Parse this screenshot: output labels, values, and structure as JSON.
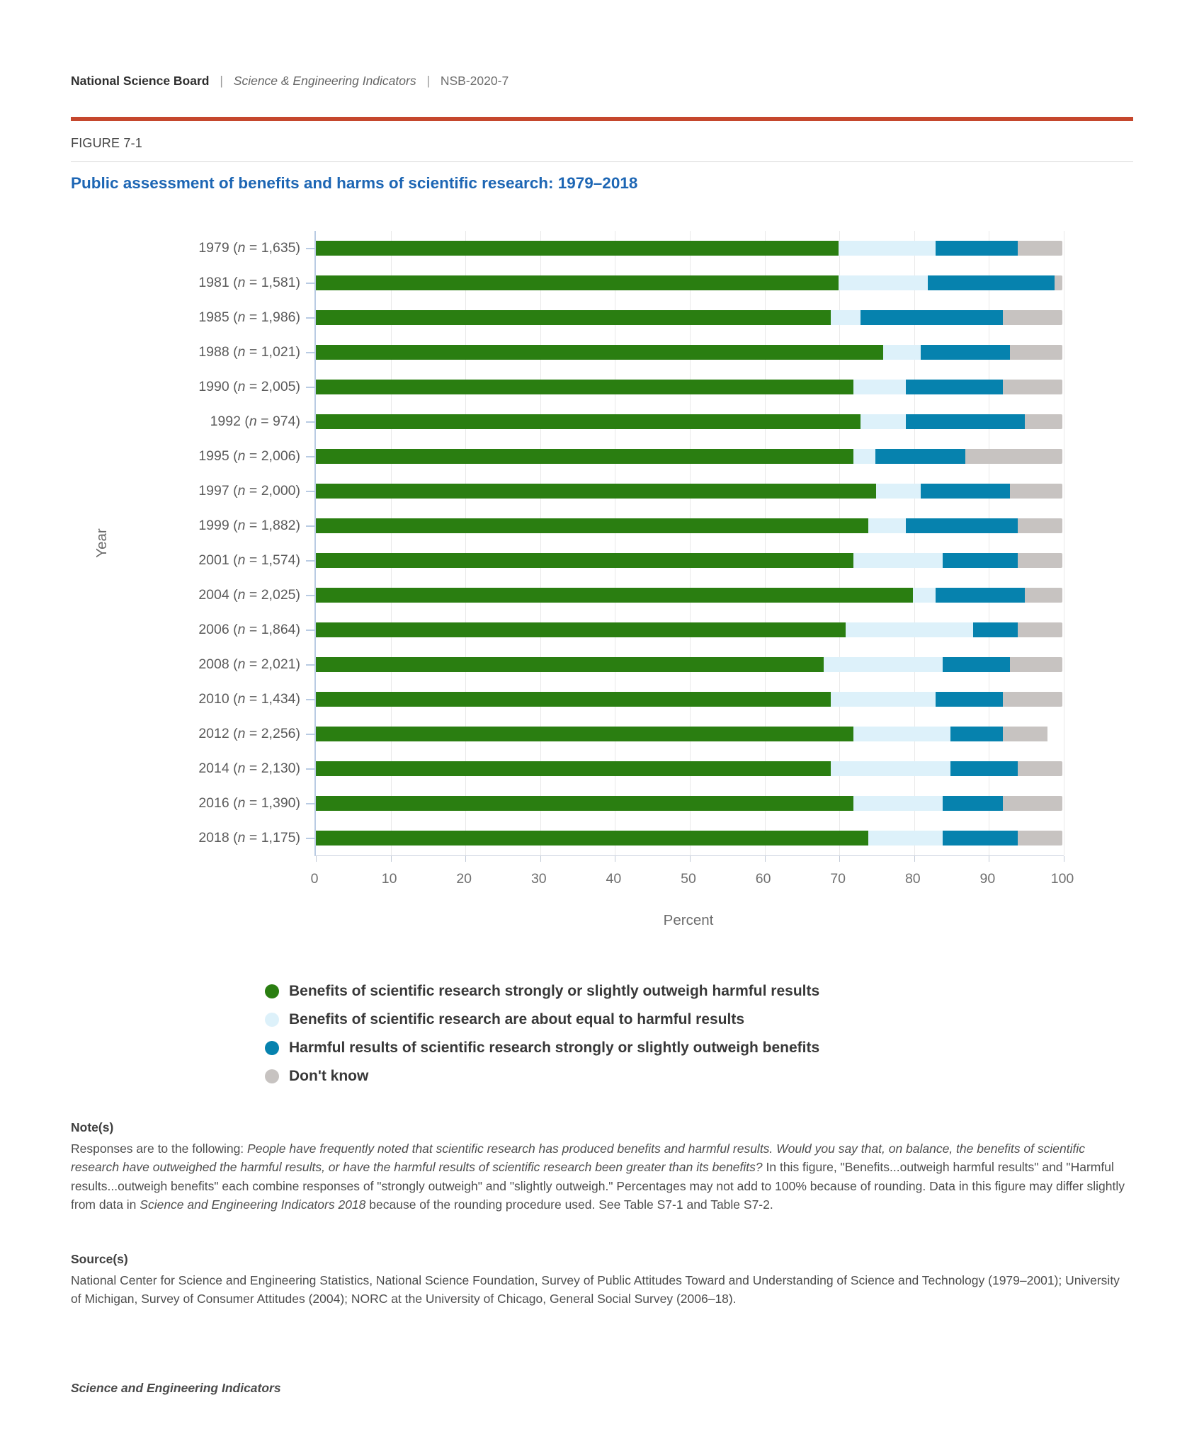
{
  "header": {
    "org": "National Science Board",
    "publication": "Science & Engineering Indicators",
    "report_id": "NSB-2020-7",
    "separator": "|"
  },
  "figure": {
    "label": "FIGURE 7-1",
    "title": "Public assessment of benefits and harms of scientific research: 1979–2018"
  },
  "chart_data": {
    "type": "bar",
    "orientation": "horizontal",
    "stacked": true,
    "title": "Public assessment of benefits and harms of scientific research: 1979–2018",
    "xlabel": "Percent",
    "ylabel": "Year",
    "xlim": [
      0,
      100
    ],
    "xticks": [
      0,
      10,
      20,
      30,
      40,
      50,
      60,
      70,
      80,
      90,
      100
    ],
    "grid": true,
    "legend_position": "bottom",
    "categories": [
      {
        "year": "1979",
        "n": "1,635"
      },
      {
        "year": "1981",
        "n": "1,581"
      },
      {
        "year": "1985",
        "n": "1,986"
      },
      {
        "year": "1988",
        "n": "1,021"
      },
      {
        "year": "1990",
        "n": "2,005"
      },
      {
        "year": "1992",
        "n": "974"
      },
      {
        "year": "1995",
        "n": "2,006"
      },
      {
        "year": "1997",
        "n": "2,000"
      },
      {
        "year": "1999",
        "n": "1,882"
      },
      {
        "year": "2001",
        "n": "1,574"
      },
      {
        "year": "2004",
        "n": "2,025"
      },
      {
        "year": "2006",
        "n": "1,864"
      },
      {
        "year": "2008",
        "n": "2,021"
      },
      {
        "year": "2010",
        "n": "1,434"
      },
      {
        "year": "2012",
        "n": "2,256"
      },
      {
        "year": "2014",
        "n": "2,130"
      },
      {
        "year": "2016",
        "n": "1,390"
      },
      {
        "year": "2018",
        "n": "1,175"
      }
    ],
    "series": [
      {
        "name": "Benefits of scientific research strongly or slightly outweigh harmful results",
        "color": "#2a7e11",
        "values": [
          70,
          70,
          69,
          76,
          72,
          73,
          72,
          75,
          74,
          72,
          80,
          71,
          68,
          69,
          72,
          69,
          72,
          74
        ]
      },
      {
        "name": "Benefits of scientific research are about equal to harmful results",
        "color": "#ddf1fa",
        "values": [
          13,
          12,
          4,
          5,
          7,
          6,
          3,
          6,
          5,
          12,
          3,
          17,
          16,
          14,
          13,
          16,
          12,
          10
        ]
      },
      {
        "name": "Harmful results of scientific research strongly or slightly outweigh benefits",
        "color": "#0682ae",
        "values": [
          11,
          17,
          19,
          12,
          13,
          16,
          12,
          12,
          15,
          10,
          12,
          6,
          9,
          9,
          7,
          9,
          8,
          10
        ]
      },
      {
        "name": "Don't know",
        "color": "#c7c3c1",
        "values": [
          6,
          1,
          8,
          7,
          8,
          5,
          13,
          7,
          6,
          6,
          5,
          6,
          7,
          8,
          6,
          6,
          8,
          6
        ]
      }
    ]
  },
  "notes": {
    "heading": "Note(s)",
    "segments": [
      {
        "text": "Responses are to the following: ",
        "italic": false
      },
      {
        "text": "People have frequently noted that scientific research has produced benefits and harmful results. Would you say that, on balance, the benefits of scientific research have outweighed the harmful results, or have the harmful results of scientific research been greater than its benefits?",
        "italic": true
      },
      {
        "text": " In this figure, \"Benefits...outweigh harmful results\" and \"Harmful results...outweigh benefits\" each combine responses of \"strongly outweigh\" and \"slightly outweigh.\" Percentages may not add to 100% because of rounding. Data in this figure may differ slightly from data in ",
        "italic": false
      },
      {
        "text": "Science and Engineering Indicators 2018",
        "italic": true
      },
      {
        "text": " because of the rounding procedure used. See Table S7-1 and Table S7-2.",
        "italic": false
      }
    ]
  },
  "sources": {
    "heading": "Source(s)",
    "text": "National Center for Science and Engineering Statistics, National Science Foundation, Survey of Public Attitudes Toward and Understanding of Science and Technology (1979–2001); University of Michigan, Survey of Consumer Attitudes (2004); NORC at the University of Chicago, General Social Survey (2006–18)."
  },
  "footer": {
    "text": "Science and Engineering Indicators"
  }
}
